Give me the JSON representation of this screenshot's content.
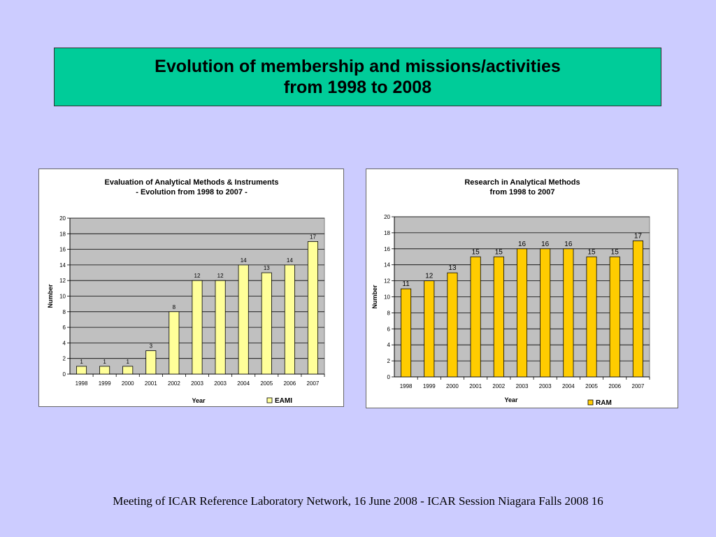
{
  "header": {
    "title_line1": "Evolution of membership and missions/activities",
    "title_line2": "from 1998 to 2008"
  },
  "footer": {
    "text": "Meeting of ICAR Reference Laboratory Network,  16 June 2008 - ICAR Session Niagara Falls 2008 16"
  },
  "chart_data": [
    {
      "type": "bar",
      "title_line1": "Evaluation of Analytical Methods & Instruments",
      "title_line2": "- Evolution  from 1998 to 2007 -",
      "xlabel": "Year",
      "ylabel": "Number",
      "ylim": [
        0,
        20
      ],
      "yticks": [
        0,
        2,
        4,
        6,
        8,
        10,
        12,
        14,
        16,
        18,
        20
      ],
      "grid": true,
      "legend_position": "bottom-right",
      "categories": [
        "1998",
        "1999",
        "2000",
        "2001",
        "2002",
        "2003",
        "2003",
        "2004",
        "2005",
        "2006",
        "2007"
      ],
      "series": [
        {
          "name": "EAMI",
          "color": "#ffff99",
          "values": [
            1,
            1,
            1,
            3,
            8,
            12,
            12,
            14,
            13,
            14,
            17
          ]
        }
      ]
    },
    {
      "type": "bar",
      "title_line1": "Research in Analytical Methods",
      "title_line2": "from 1998 to 2007",
      "xlabel": "Year",
      "ylabel": "Number",
      "ylim": [
        0,
        20
      ],
      "yticks": [
        0,
        2,
        4,
        6,
        8,
        10,
        12,
        14,
        16,
        18,
        20
      ],
      "grid": true,
      "legend_position": "bottom-right",
      "categories": [
        "1998",
        "1999",
        "2000",
        "2001",
        "2002",
        "2003",
        "2003",
        "2004",
        "2005",
        "2006",
        "2007"
      ],
      "series": [
        {
          "name": "RAM",
          "color": "#ffcc00",
          "values": [
            11,
            12,
            13,
            15,
            15,
            16,
            16,
            16,
            15,
            15,
            17
          ]
        }
      ]
    }
  ]
}
